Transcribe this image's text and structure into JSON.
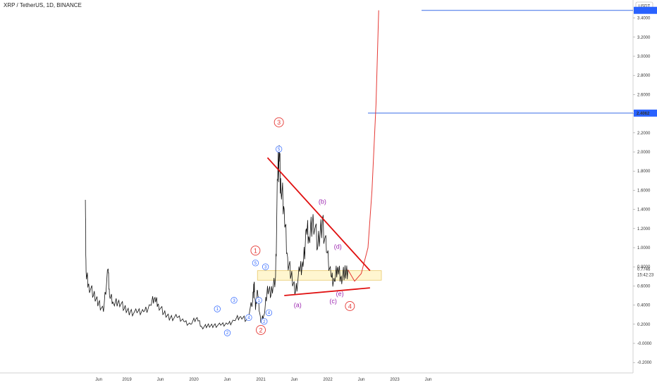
{
  "header": {
    "title": "XRP / TetherUS, 1D, BINANCE"
  },
  "chart_data": {
    "type": "line",
    "title": "XRP / TetherUS, 1D, BINANCE",
    "ylim": [
      -0.3,
      3.6
    ],
    "y_ticks": [
      "3.4000",
      "3.2000",
      "3.0000",
      "2.8000",
      "2.6000",
      "2.4000",
      "2.2000",
      "2.0000",
      "1.8000",
      "1.6000",
      "1.4000",
      "1.2000",
      "1.0000",
      "0.8000",
      "0.6000",
      "0.4000",
      "0.2000",
      "-0.0000",
      "-0.2000"
    ],
    "y_tick_values": [
      3.4,
      3.2,
      3.0,
      2.8,
      2.6,
      2.4,
      2.2,
      2.0,
      1.8,
      1.6,
      1.4,
      1.2,
      1.0,
      0.8,
      0.6,
      0.4,
      0.2,
      0.0,
      -0.2
    ],
    "x_ticks": [
      "Jun",
      "2019",
      "Jun",
      "2020",
      "Jun",
      "2021",
      "Jun",
      "2022",
      "Jun",
      "2023",
      "Jun"
    ],
    "currency_badge": "USDT",
    "last_price": "0.7746",
    "countdown": "15:42:23",
    "horizontal_line_label": "2.4062",
    "horizontal_lines": [
      3.48,
      2.4062
    ],
    "series": [
      {
        "values": [
          [
            2018.38,
            1.5
          ],
          [
            2018.39,
            0.75
          ],
          [
            2018.43,
            0.62
          ],
          [
            2018.5,
            0.5
          ],
          [
            2018.58,
            0.43
          ],
          [
            2018.65,
            0.33
          ],
          [
            2018.72,
            0.78
          ],
          [
            2018.74,
            0.5
          ],
          [
            2018.8,
            0.42
          ],
          [
            2018.88,
            0.45
          ],
          [
            2018.96,
            0.36
          ],
          [
            2019.05,
            0.33
          ],
          [
            2019.15,
            0.32
          ],
          [
            2019.25,
            0.33
          ],
          [
            2019.35,
            0.4
          ],
          [
            2019.42,
            0.48
          ],
          [
            2019.47,
            0.41
          ],
          [
            2019.55,
            0.31
          ],
          [
            2019.65,
            0.27
          ],
          [
            2019.75,
            0.27
          ],
          [
            2019.85,
            0.23
          ],
          [
            2019.95,
            0.2
          ],
          [
            2020.05,
            0.27
          ],
          [
            2020.12,
            0.17
          ],
          [
            2020.2,
            0.18
          ],
          [
            2020.3,
            0.19
          ],
          [
            2020.4,
            0.19
          ],
          [
            2020.5,
            0.2
          ],
          [
            2020.6,
            0.24
          ],
          [
            2020.7,
            0.28
          ],
          [
            2020.8,
            0.25
          ],
          [
            2020.88,
            0.45
          ],
          [
            2020.9,
            0.64
          ],
          [
            2020.92,
            0.35
          ],
          [
            2020.95,
            0.55
          ],
          [
            2021.0,
            0.22
          ],
          [
            2021.05,
            0.3
          ],
          [
            2021.1,
            0.6
          ],
          [
            2021.15,
            0.5
          ],
          [
            2021.22,
            0.7
          ],
          [
            2021.25,
            1.7
          ],
          [
            2021.28,
            1.96
          ],
          [
            2021.3,
            1.6
          ],
          [
            2021.35,
            1.4
          ],
          [
            2021.4,
            0.9
          ],
          [
            2021.45,
            0.7
          ],
          [
            2021.52,
            0.55
          ],
          [
            2021.58,
            0.75
          ],
          [
            2021.63,
            0.8
          ],
          [
            2021.68,
            1.2
          ],
          [
            2021.72,
            1.1
          ],
          [
            2021.78,
            1.35
          ],
          [
            2021.85,
            1.0
          ],
          [
            2021.92,
            1.3
          ],
          [
            2021.98,
            0.95
          ],
          [
            2022.05,
            0.7
          ],
          [
            2022.1,
            0.65
          ],
          [
            2022.15,
            0.8
          ],
          [
            2022.2,
            0.7
          ],
          [
            2022.25,
            0.72
          ],
          [
            2022.3,
            0.77
          ]
        ]
      },
      {
        "values": [
          [
            2022.3,
            0.77
          ],
          [
            2022.4,
            0.65
          ],
          [
            2022.5,
            0.73
          ],
          [
            2022.6,
            1.0
          ],
          [
            2022.66,
            1.6
          ],
          [
            2022.72,
            2.5
          ],
          [
            2022.76,
            3.48
          ]
        ]
      }
    ],
    "trendlines": [
      {
        "from": [
          2021.1,
          1.94
        ],
        "to": [
          2022.63,
          0.76
        ]
      },
      {
        "from": [
          2021.35,
          0.5
        ],
        "to": [
          2022.63,
          0.58
        ]
      }
    ],
    "zone": {
      "x": [
        2020.95,
        2022.8
      ],
      "y": [
        0.66,
        0.76
      ]
    },
    "annotations": [
      {
        "label": "3",
        "style": "circle-red",
        "at": [
          2021.27,
          2.31
        ]
      },
      {
        "label": "5",
        "style": "circle-blue",
        "at": [
          2021.27,
          2.03
        ]
      },
      {
        "label": "1",
        "style": "circle-red",
        "at": [
          2020.92,
          0.97
        ]
      },
      {
        "label": "5",
        "style": "circle-blue",
        "at": [
          2020.92,
          0.84
        ]
      },
      {
        "label": "3",
        "style": "circle-blue",
        "at": [
          2021.07,
          0.8
        ]
      },
      {
        "label": "1",
        "style": "circle-blue",
        "at": [
          2020.97,
          0.45
        ]
      },
      {
        "label": "4",
        "style": "circle-blue",
        "at": [
          2021.12,
          0.32
        ]
      },
      {
        "label": "2",
        "style": "circle-blue",
        "at": [
          2021.05,
          0.23
        ]
      },
      {
        "label": "2",
        "style": "circle-red",
        "at": [
          2021.0,
          0.14
        ]
      },
      {
        "label": "1",
        "style": "circle-blue",
        "at": [
          2020.35,
          0.36
        ]
      },
      {
        "label": "2",
        "style": "circle-blue",
        "at": [
          2020.5,
          0.11
        ]
      },
      {
        "label": "3",
        "style": "circle-blue",
        "at": [
          2020.6,
          0.45
        ]
      },
      {
        "label": "4",
        "style": "circle-blue",
        "at": [
          2020.82,
          0.27
        ]
      },
      {
        "label": "(a)",
        "style": "text-purple",
        "at": [
          2021.55,
          0.4
        ]
      },
      {
        "label": "(b)",
        "style": "text-purple",
        "at": [
          2021.92,
          1.48
        ]
      },
      {
        "label": "(c)",
        "style": "text-purple",
        "at": [
          2022.08,
          0.44
        ]
      },
      {
        "label": "(d)",
        "style": "text-purple",
        "at": [
          2022.15,
          1.01
        ]
      },
      {
        "label": "(e)",
        "style": "text-purple",
        "at": [
          2022.18,
          0.52
        ]
      },
      {
        "label": "4",
        "style": "circle-red",
        "at": [
          2022.33,
          0.39
        ]
      }
    ]
  }
}
